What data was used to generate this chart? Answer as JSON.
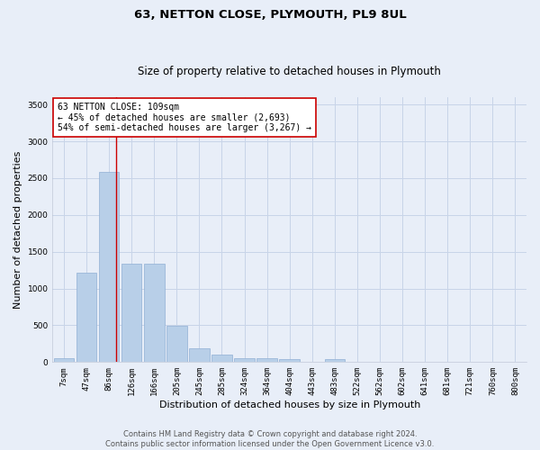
{
  "title": "63, NETTON CLOSE, PLYMOUTH, PL9 8UL",
  "subtitle": "Size of property relative to detached houses in Plymouth",
  "xlabel": "Distribution of detached houses by size in Plymouth",
  "ylabel": "Number of detached properties",
  "categories": [
    "7sqm",
    "47sqm",
    "86sqm",
    "126sqm",
    "166sqm",
    "205sqm",
    "245sqm",
    "285sqm",
    "324sqm",
    "364sqm",
    "404sqm",
    "443sqm",
    "483sqm",
    "522sqm",
    "562sqm",
    "602sqm",
    "641sqm",
    "681sqm",
    "721sqm",
    "760sqm",
    "800sqm"
  ],
  "values": [
    50,
    1220,
    2580,
    1340,
    1340,
    490,
    185,
    100,
    50,
    50,
    35,
    0,
    35,
    0,
    0,
    0,
    0,
    0,
    0,
    0,
    0
  ],
  "bar_color": "#b8cfe8",
  "bar_edge_color": "#90afd4",
  "grid_color": "#c8d4e8",
  "background_color": "#e8eef8",
  "ylim": [
    0,
    3600
  ],
  "yticks": [
    0,
    500,
    1000,
    1500,
    2000,
    2500,
    3000,
    3500
  ],
  "annotation_text": "63 NETTON CLOSE: 109sqm\n← 45% of detached houses are smaller (2,693)\n54% of semi-detached houses are larger (3,267) →",
  "annotation_box_color": "#ffffff",
  "annotation_border_color": "#cc0000",
  "red_line_x": 2.33,
  "red_line_color": "#cc0000",
  "footer_line1": "Contains HM Land Registry data © Crown copyright and database right 2024.",
  "footer_line2": "Contains public sector information licensed under the Open Government Licence v3.0.",
  "title_fontsize": 9.5,
  "subtitle_fontsize": 8.5,
  "ylabel_fontsize": 8,
  "xlabel_fontsize": 8,
  "tick_fontsize": 6.5,
  "annotation_fontsize": 7,
  "footer_fontsize": 6
}
